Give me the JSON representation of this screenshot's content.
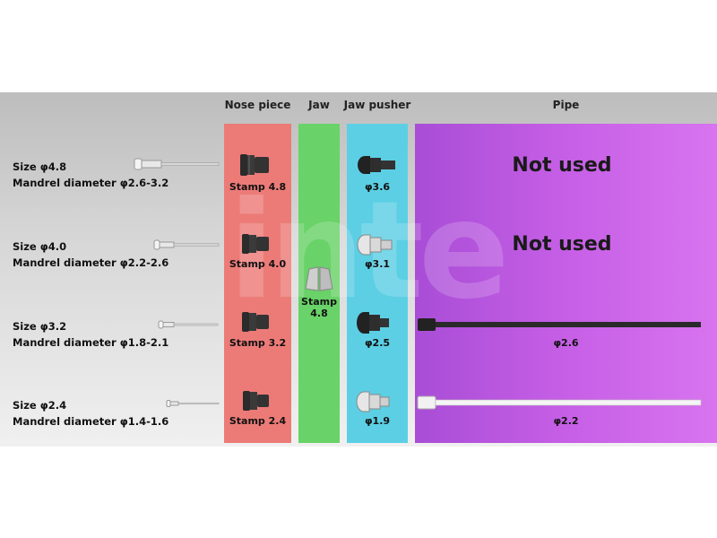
{
  "headers": {
    "nose_piece": "Nose piece",
    "jaw": "Jaw",
    "jaw_pusher": "Jaw pusher",
    "pipe": "Pipe"
  },
  "rows": [
    {
      "size": "Size φ4.8",
      "mandrel": "Mandrel diameter φ2.6-3.2",
      "nose": "Stamp 4.8",
      "pusher": "φ3.6",
      "pipe": "Not used"
    },
    {
      "size": "Size φ4.0",
      "mandrel": "Mandrel diameter φ2.2-2.6",
      "nose": "Stamp 4.0",
      "pusher": "φ3.1",
      "pipe": "Not used"
    },
    {
      "size": "Size φ3.2",
      "mandrel": "Mandrel diameter φ1.8-2.1",
      "nose": "Stamp 3.2",
      "pusher": "φ2.5",
      "pipe": "φ2.6"
    },
    {
      "size": "Size φ2.4",
      "mandrel": "Mandrel diameter φ1.4-1.6",
      "nose": "Stamp 2.4",
      "pusher": "φ1.9",
      "pipe": "φ2.2"
    }
  ],
  "jaw": {
    "line1": "Stamp",
    "line2": "4.8"
  },
  "watermark": "inte",
  "colors": {
    "nose_piece": "#ec7b78",
    "jaw": "#69d268",
    "jaw_pusher": "#5ccfe4",
    "pipe": "#c65fe6"
  }
}
